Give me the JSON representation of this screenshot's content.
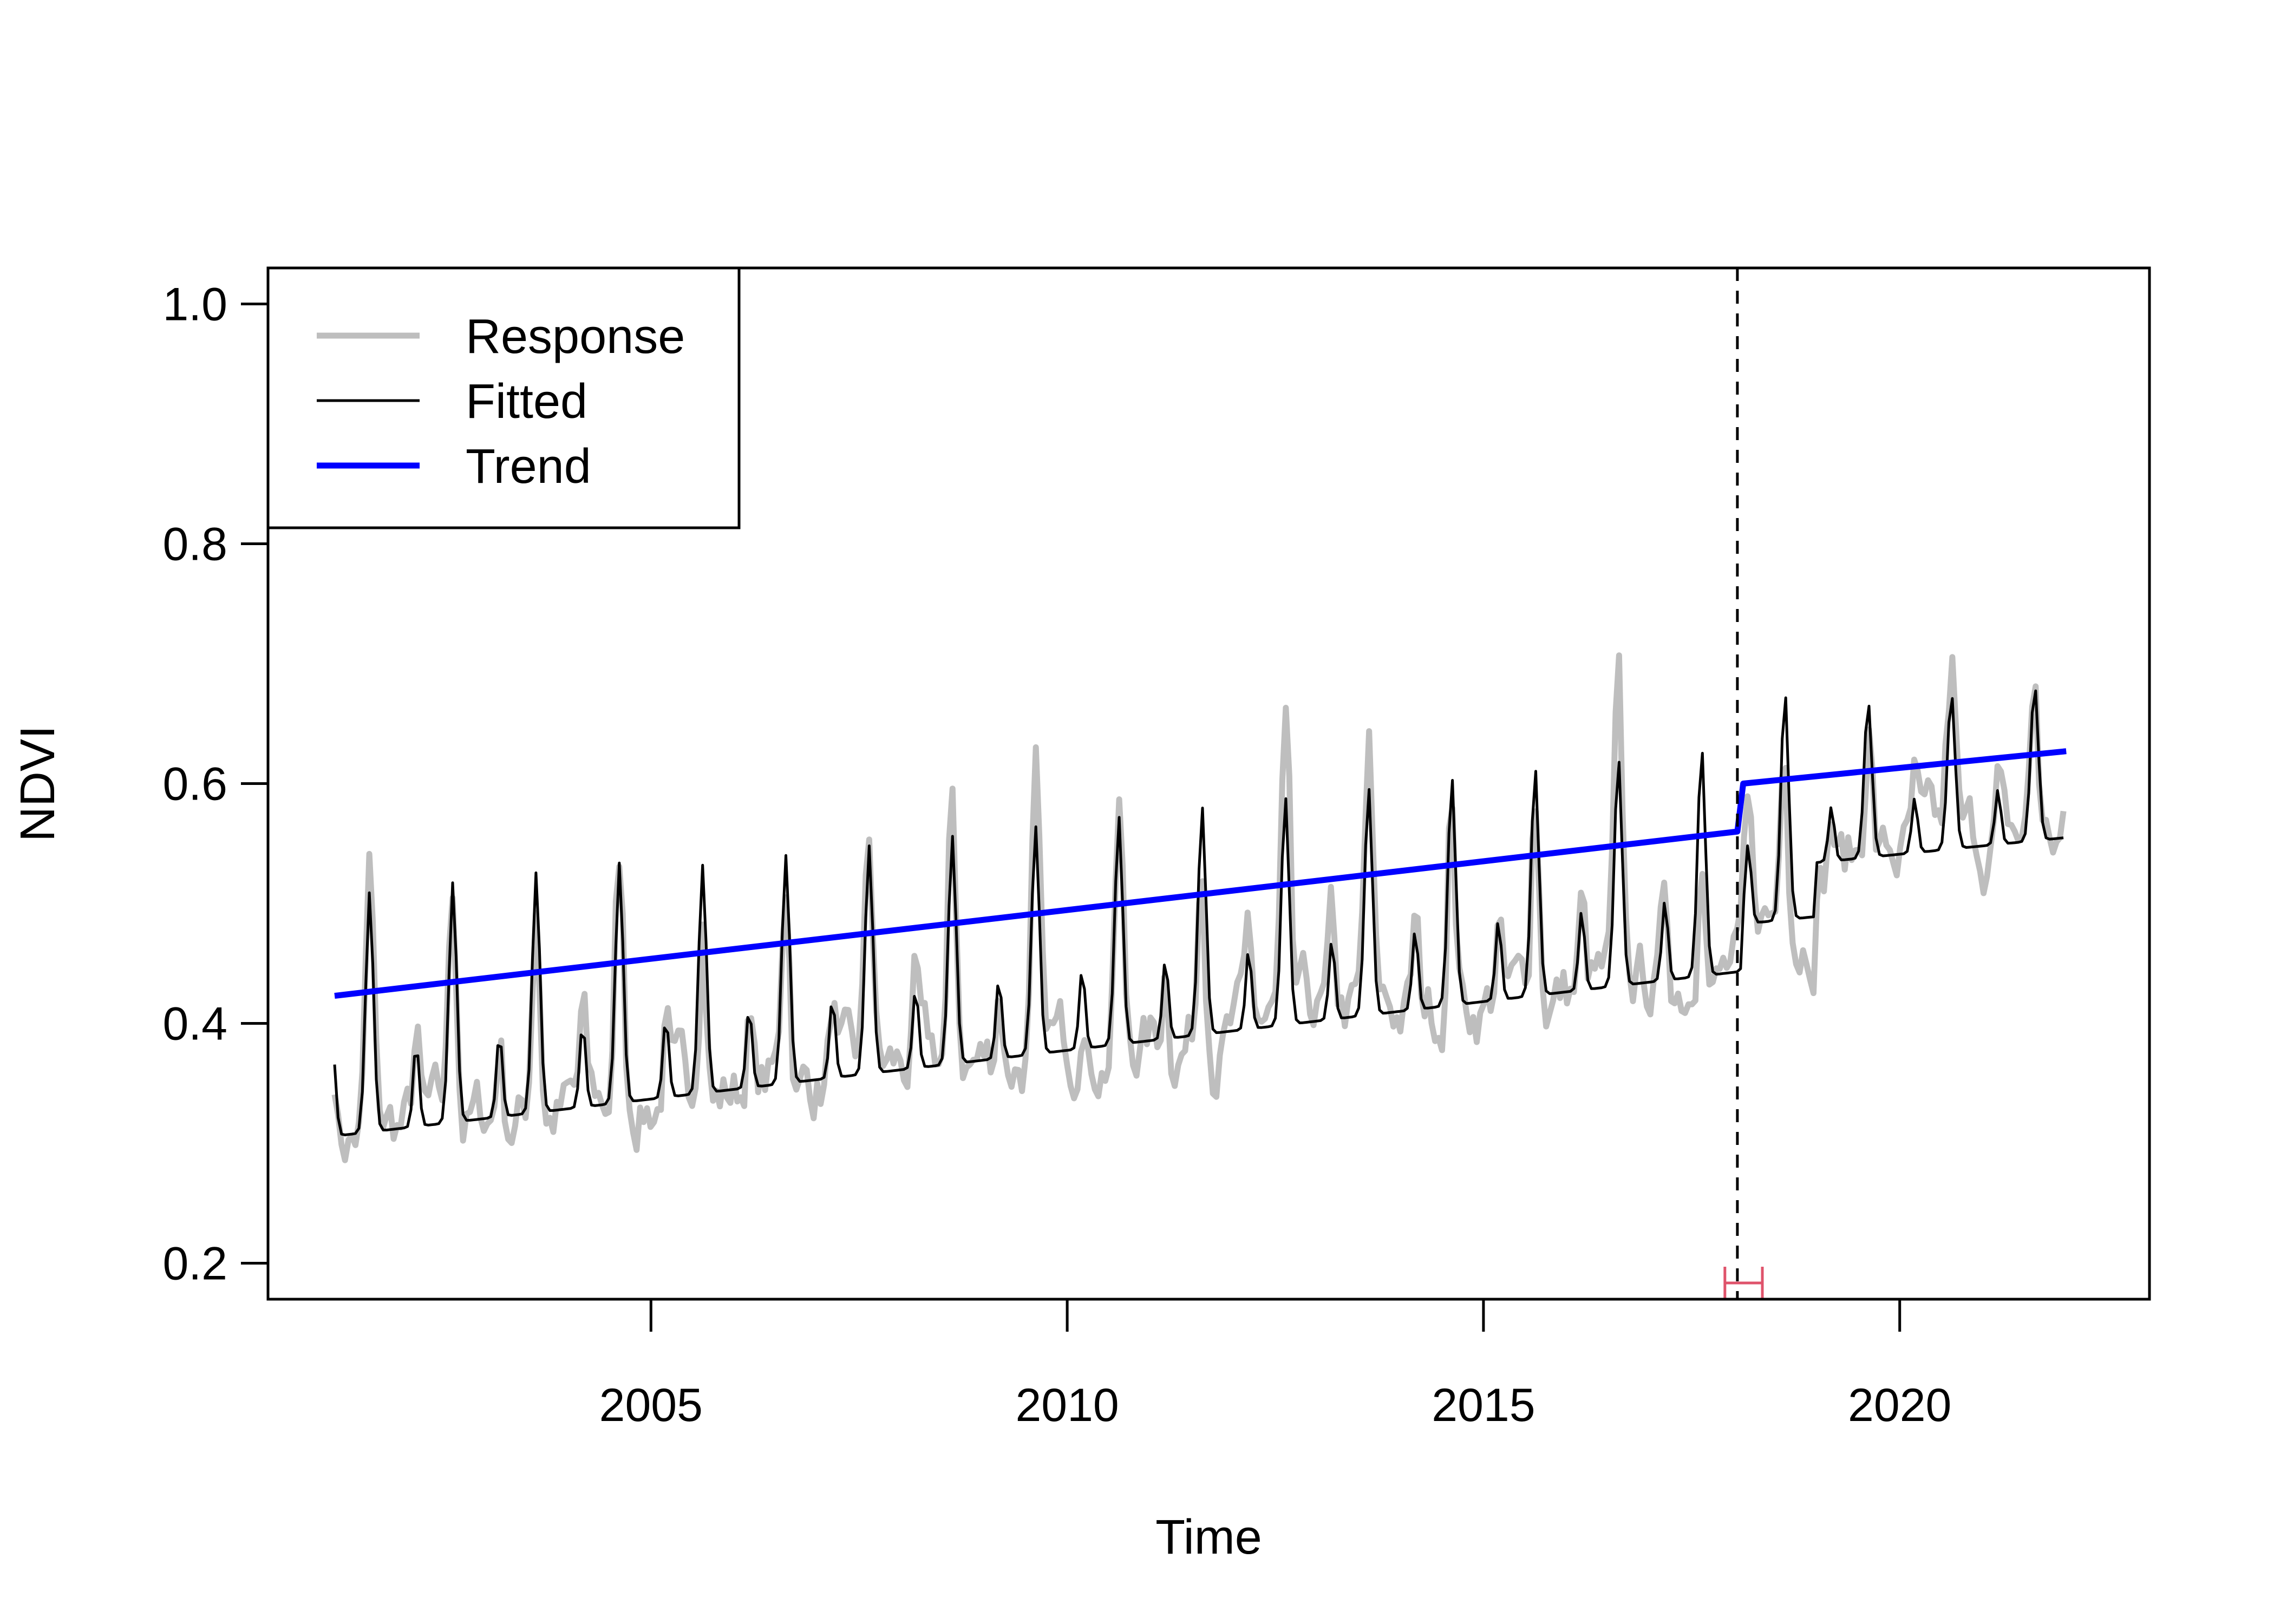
{
  "chart_data": {
    "type": "line",
    "title": "",
    "xlabel": "Time",
    "ylabel": "NDVI",
    "xlim": [
      2000.4,
      2023.0
    ],
    "ylim": [
      0.17,
      1.03
    ],
    "x_ticks": [
      2005,
      2010,
      2015,
      2020
    ],
    "y_ticks": [
      0.2,
      0.4,
      0.6,
      0.8,
      1.0
    ],
    "y_tick_labels": [
      "0.2",
      "0.4",
      "0.6",
      "0.8",
      "1.0"
    ],
    "grid": false,
    "legend": {
      "position": "top-left",
      "entries": [
        {
          "name": "Response",
          "color": "#bebebe"
        },
        {
          "name": "Fitted",
          "color": "#000000"
        },
        {
          "name": "Trend",
          "color": "#0000ff"
        }
      ]
    },
    "breakpoint": {
      "x": 2018.05,
      "ci": [
        2017.9,
        2018.35
      ],
      "ci_color": "#df536b"
    },
    "trend": {
      "segments": [
        {
          "x": [
            2001.2,
            2018.05
          ],
          "y": [
            0.423,
            0.56
          ]
        },
        {
          "x": [
            2018.12,
            2022.0
          ],
          "y": [
            0.6,
            0.627
          ]
        }
      ]
    },
    "seasonal_model": {
      "x_start": 2001.2,
      "x_end": 2022.0,
      "time_step": 0.0417,
      "peak_phase": 0.62,
      "secondary_peak_phase": 0.18,
      "peak_amplitude": [
        0.2,
        0.2,
        0.2,
        0.2,
        0.19,
        0.19,
        0.19,
        0.19,
        0.19,
        0.19,
        0.19,
        0.19,
        0.19,
        0.19,
        0.19,
        0.19,
        0.19,
        0.19,
        0.13,
        0.13,
        0.13,
        0.13
      ],
      "trough_depth": [
        0.13,
        0.13,
        0.13,
        0.13,
        0.13,
        0.13,
        0.13,
        0.13,
        0.13,
        0.13,
        0.13,
        0.13,
        0.13,
        0.13,
        0.13,
        0.13,
        0.13,
        0.13,
        0.08,
        0.08,
        0.08,
        0.08
      ]
    }
  }
}
